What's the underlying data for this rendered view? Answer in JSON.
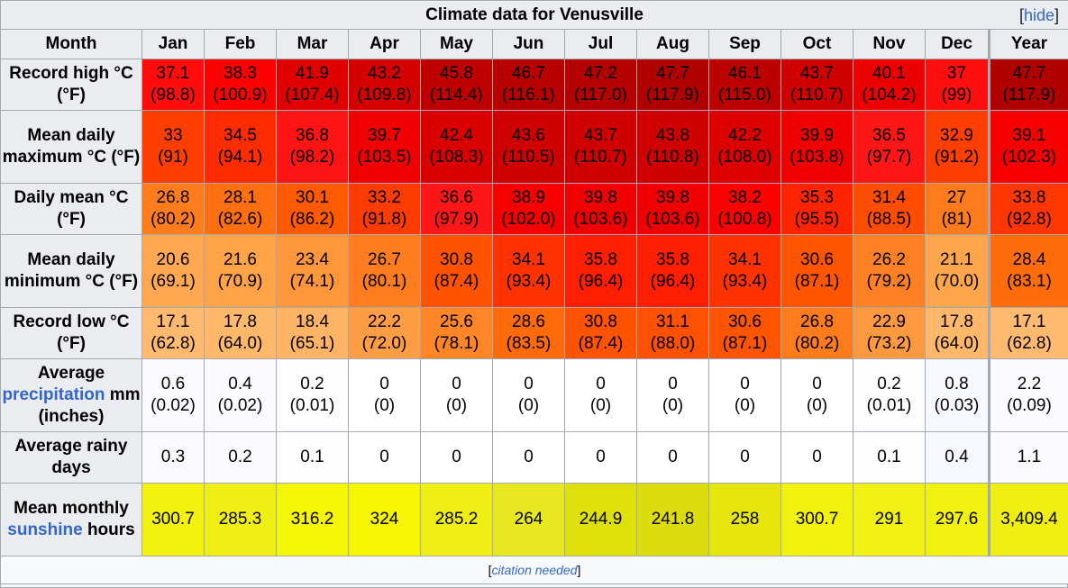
{
  "title": "Climate data for Venusville",
  "hide_link": "hide",
  "header_month": "Month",
  "months": [
    "Jan",
    "Feb",
    "Mar",
    "Apr",
    "May",
    "Jun",
    "Jul",
    "Aug",
    "Sep",
    "Oct",
    "Nov",
    "Dec"
  ],
  "year_label": "Year",
  "rows": [
    {
      "label": "Record high °C (°F)",
      "cells": [
        {
          "c": "37.1",
          "f": "(98.8)",
          "bg": "#ff0d0d"
        },
        {
          "c": "38.3",
          "f": "(100.9)",
          "bg": "#ff0000"
        },
        {
          "c": "41.9",
          "f": "(107.4)",
          "bg": "#e00000"
        },
        {
          "c": "43.2",
          "f": "(109.8)",
          "bg": "#d50000"
        },
        {
          "c": "45.8",
          "f": "(114.4)",
          "bg": "#c00000"
        },
        {
          "c": "46.7",
          "f": "(116.1)",
          "bg": "#b90000"
        },
        {
          "c": "47.2",
          "f": "(117.0)",
          "bg": "#b50000"
        },
        {
          "c": "47.7",
          "f": "(117.9)",
          "bg": "#b10000"
        },
        {
          "c": "46.1",
          "f": "(115.0)",
          "bg": "#bd0000"
        },
        {
          "c": "43.7",
          "f": "(110.7)",
          "bg": "#d10000"
        },
        {
          "c": "40.1",
          "f": "(104.2)",
          "bg": "#ee0000"
        },
        {
          "c": "37",
          "f": "(99)",
          "bg": "#ff0e0e"
        },
        {
          "c": "47.7",
          "f": "(117.9)",
          "bg": "#b10000"
        }
      ]
    },
    {
      "label": "Mean daily maximum °C (°F)",
      "cells": [
        {
          "c": "33",
          "f": "(91)",
          "bg": "#ff3e00"
        },
        {
          "c": "34.5",
          "f": "(94.1)",
          "bg": "#ff2c00"
        },
        {
          "c": "36.8",
          "f": "(98.2)",
          "bg": "#ff1414"
        },
        {
          "c": "39.7",
          "f": "(103.5)",
          "bg": "#f10000"
        },
        {
          "c": "42.4",
          "f": "(108.3)",
          "bg": "#db0000"
        },
        {
          "c": "43.6",
          "f": "(110.5)",
          "bg": "#d10000"
        },
        {
          "c": "43.7",
          "f": "(110.7)",
          "bg": "#d10000"
        },
        {
          "c": "43.8",
          "f": "(110.8)",
          "bg": "#d00000"
        },
        {
          "c": "42.2",
          "f": "(108.0)",
          "bg": "#dc0000"
        },
        {
          "c": "39.9",
          "f": "(103.8)",
          "bg": "#f00000"
        },
        {
          "c": "36.5",
          "f": "(97.7)",
          "bg": "#ff1717"
        },
        {
          "c": "32.9",
          "f": "(91.2)",
          "bg": "#ff3f00"
        },
        {
          "c": "39.1",
          "f": "(102.3)",
          "bg": "#f60000"
        }
      ]
    },
    {
      "label": "Daily mean °C (°F)",
      "cells": [
        {
          "c": "26.8",
          "f": "(80.2)",
          "bg": "#ff7c1d"
        },
        {
          "c": "28.1",
          "f": "(82.6)",
          "bg": "#ff6f10"
        },
        {
          "c": "30.1",
          "f": "(86.2)",
          "bg": "#ff5a00"
        },
        {
          "c": "33.2",
          "f": "(91.8)",
          "bg": "#ff3c00"
        },
        {
          "c": "36.6",
          "f": "(97.9)",
          "bg": "#ff1616"
        },
        {
          "c": "38.9",
          "f": "(102.0)",
          "bg": "#f70000"
        },
        {
          "c": "39.8",
          "f": "(103.6)",
          "bg": "#f00000"
        },
        {
          "c": "39.8",
          "f": "(103.6)",
          "bg": "#f00000"
        },
        {
          "c": "38.2",
          "f": "(100.8)",
          "bg": "#ff0000"
        },
        {
          "c": "35.3",
          "f": "(95.5)",
          "bg": "#ff2400"
        },
        {
          "c": "31.4",
          "f": "(88.5)",
          "bg": "#ff4d00"
        },
        {
          "c": "27",
          "f": "(81)",
          "bg": "#ff7b1b"
        },
        {
          "c": "33.8",
          "f": "(92.8)",
          "bg": "#ff3600"
        }
      ]
    },
    {
      "label": "Mean daily minimum °C (°F)",
      "cells": [
        {
          "c": "20.6",
          "f": "(69.1)",
          "bg": "#ffa851"
        },
        {
          "c": "21.6",
          "f": "(70.9)",
          "bg": "#ffa348"
        },
        {
          "c": "23.4",
          "f": "(74.1)",
          "bg": "#ff963b"
        },
        {
          "c": "26.7",
          "f": "(80.1)",
          "bg": "#ff7d1e"
        },
        {
          "c": "30.8",
          "f": "(87.4)",
          "bg": "#ff5300"
        },
        {
          "c": "34.1",
          "f": "(93.4)",
          "bg": "#ff3300"
        },
        {
          "c": "35.8",
          "f": "(96.4)",
          "bg": "#ff1f00"
        },
        {
          "c": "35.8",
          "f": "(96.4)",
          "bg": "#ff1f00"
        },
        {
          "c": "34.1",
          "f": "(93.4)",
          "bg": "#ff3300"
        },
        {
          "c": "30.6",
          "f": "(87.1)",
          "bg": "#ff5500"
        },
        {
          "c": "26.2",
          "f": "(79.2)",
          "bg": "#ff8123"
        },
        {
          "c": "21.1",
          "f": "(70.0)",
          "bg": "#ffa54c"
        },
        {
          "c": "28.4",
          "f": "(83.1)",
          "bg": "#ff6c0c"
        }
      ]
    },
    {
      "label": "Record low °C (°F)",
      "cells": [
        {
          "c": "17.1",
          "f": "(62.8)",
          "bg": "#ffba6f"
        },
        {
          "c": "17.8",
          "f": "(64.0)",
          "bg": "#ffb769"
        },
        {
          "c": "18.4",
          "f": "(65.1)",
          "bg": "#ffb364"
        },
        {
          "c": "22.2",
          "f": "(72.0)",
          "bg": "#ff9d44"
        },
        {
          "c": "25.6",
          "f": "(78.1)",
          "bg": "#ff8626"
        },
        {
          "c": "28.6",
          "f": "(83.5)",
          "bg": "#ff6a0a"
        },
        {
          "c": "30.8",
          "f": "(87.4)",
          "bg": "#ff5300"
        },
        {
          "c": "31.1",
          "f": "(88.0)",
          "bg": "#ff5100"
        },
        {
          "c": "30.6",
          "f": "(87.1)",
          "bg": "#ff5500"
        },
        {
          "c": "26.8",
          "f": "(80.2)",
          "bg": "#ff7c1d"
        },
        {
          "c": "22.9",
          "f": "(73.2)",
          "bg": "#ff9940"
        },
        {
          "c": "17.8",
          "f": "(64.0)",
          "bg": "#ffb769"
        },
        {
          "c": "17.1",
          "f": "(62.8)",
          "bg": "#ffba6f"
        }
      ]
    },
    {
      "label_parts": [
        "Average ",
        "precipitation",
        " mm (inches)"
      ],
      "cells": [
        {
          "c": "0.6",
          "f": "(0.02)",
          "bg": "#f9f9ff"
        },
        {
          "c": "0.4",
          "f": "(0.02)",
          "bg": "#fbfbff"
        },
        {
          "c": "0.2",
          "f": "(0.01)",
          "bg": "#fdfdff"
        },
        {
          "c": "0",
          "f": "(0)",
          "bg": "#ffffff"
        },
        {
          "c": "0",
          "f": "(0)",
          "bg": "#ffffff"
        },
        {
          "c": "0",
          "f": "(0)",
          "bg": "#ffffff"
        },
        {
          "c": "0",
          "f": "(0)",
          "bg": "#ffffff"
        },
        {
          "c": "0",
          "f": "(0)",
          "bg": "#ffffff"
        },
        {
          "c": "0",
          "f": "(0)",
          "bg": "#ffffff"
        },
        {
          "c": "0",
          "f": "(0)",
          "bg": "#ffffff"
        },
        {
          "c": "0.2",
          "f": "(0.01)",
          "bg": "#fdfdff"
        },
        {
          "c": "0.8",
          "f": "(0.03)",
          "bg": "#f7f7ff"
        },
        {
          "c": "2.2",
          "f": "(0.09)",
          "bg": "#fbfbff"
        }
      ]
    },
    {
      "label": "Average rainy days",
      "cells": [
        {
          "c": "0.3",
          "bg": "#f9f9ff"
        },
        {
          "c": "0.2",
          "bg": "#fbfbff"
        },
        {
          "c": "0.1",
          "bg": "#fdfdff"
        },
        {
          "c": "0",
          "bg": "#ffffff"
        },
        {
          "c": "0",
          "bg": "#ffffff"
        },
        {
          "c": "0",
          "bg": "#ffffff"
        },
        {
          "c": "0",
          "bg": "#ffffff"
        },
        {
          "c": "0",
          "bg": "#ffffff"
        },
        {
          "c": "0",
          "bg": "#ffffff"
        },
        {
          "c": "0",
          "bg": "#ffffff"
        },
        {
          "c": "0.1",
          "bg": "#fdfdff"
        },
        {
          "c": "0.4",
          "bg": "#f7f7ff"
        },
        {
          "c": "1.1",
          "bg": "#fbfbff"
        }
      ]
    },
    {
      "label_parts": [
        "Mean monthly ",
        "sunshine",
        " hours"
      ],
      "cells": [
        {
          "c": "300.7",
          "bg": "#f2f20e"
        },
        {
          "c": "285.3",
          "bg": "#efef16"
        },
        {
          "c": "316.2",
          "bg": "#f5f506"
        },
        {
          "c": "324",
          "bg": "#f6f602"
        },
        {
          "c": "285.2",
          "bg": "#efef16"
        },
        {
          "c": "264",
          "bg": "#e8e820"
        },
        {
          "c": "244.9",
          "bg": "#dfdf0c"
        },
        {
          "c": "241.8",
          "bg": "#dddd0d"
        },
        {
          "c": "258",
          "bg": "#e6e60e"
        },
        {
          "c": "300.7",
          "bg": "#f2f20e"
        },
        {
          "c": "291",
          "bg": "#f0f012"
        },
        {
          "c": "297.6",
          "bg": "#f1f110"
        },
        {
          "c": "3,409.4",
          "bg": "#eeee12"
        }
      ]
    }
  ],
  "citation": "citation needed"
}
